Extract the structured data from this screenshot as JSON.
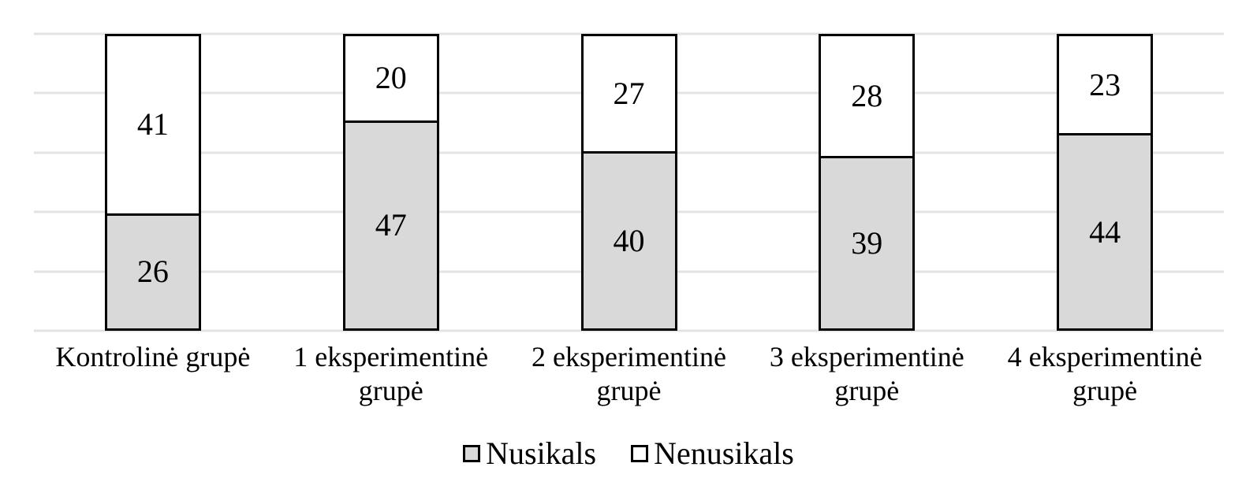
{
  "chart_data": {
    "type": "bar",
    "stacked": true,
    "title": "",
    "xlabel": "",
    "ylabel": "",
    "categories": [
      "Kontrolinė grupė",
      "1 eksperimentinė grupė",
      "2 eksperimentinė grupė",
      "3 eksperimentinė grupė",
      "4 eksperimentinė grupė"
    ],
    "series": [
      {
        "name": "Nusikals",
        "fill": "#d9d9d9",
        "values": [
          26,
          47,
          40,
          39,
          44
        ]
      },
      {
        "name": "Nenusikals",
        "fill": "#ffffff",
        "values": [
          41,
          20,
          27,
          28,
          23
        ]
      }
    ],
    "totals": [
      67,
      67,
      67,
      67,
      67
    ],
    "ylim": [
      0,
      67
    ],
    "y_axis_labels_visible": false,
    "grid_on": true,
    "gridline_count": 6,
    "legend_position": "bottom",
    "colors": {
      "bar_border": "#000000",
      "gridline": "#e3e3e3",
      "text": "#000000",
      "background": "#ffffff"
    }
  }
}
